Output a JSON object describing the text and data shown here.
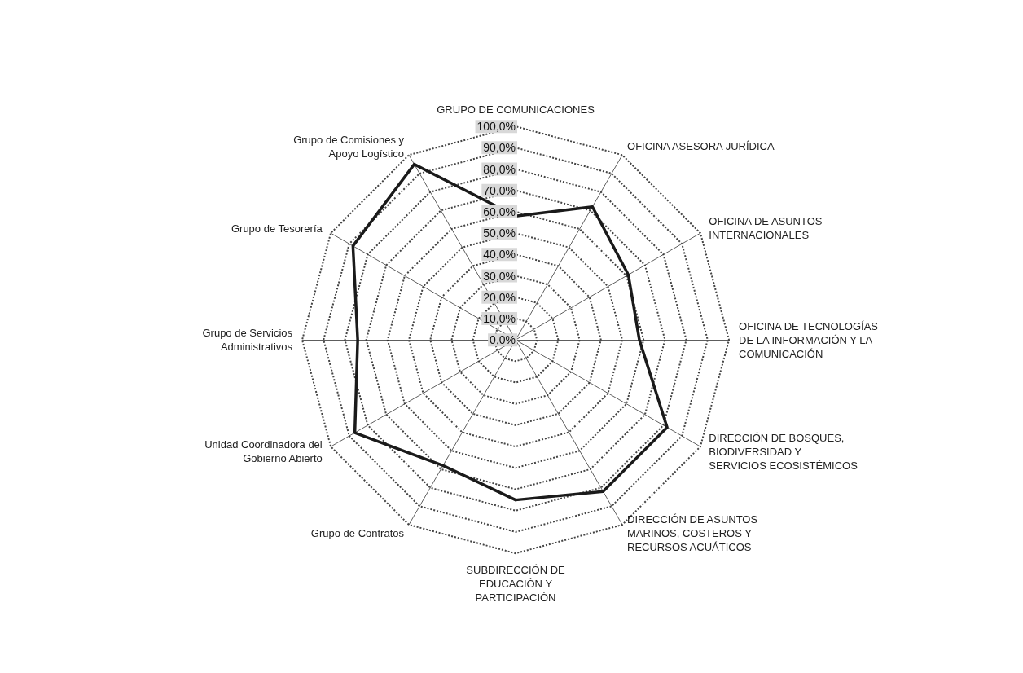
{
  "chart_data": {
    "type": "radar",
    "categories": [
      "GRUPO DE COMUNICACIONES",
      "OFICINA ASESORA JURÍDICA",
      "OFICINA DE ASUNTOS INTERNACIONALES",
      "OFICINA DE TECNOLOGÍAS DE LA INFORMACIÓN Y LA COMUNICACIÓN",
      "DIRECCIÓN DE BOSQUES, BIODIVERSIDAD Y SERVICIOS ECOSISTÉMICOS",
      "DIRECCIÓN DE ASUNTOS MARINOS, COSTEROS Y RECURSOS ACUÁTICOS",
      "SUBDIRECCIÓN DE EDUCACIÓN Y PARTICIPACIÓN",
      "Grupo de Contratos",
      "Unidad Coordinadora del Gobierno Abierto",
      "Grupo de Servicios Administrativos",
      "Grupo de Tesorería",
      "Grupo de Comisiones y Apoyo Logístico"
    ],
    "series": [
      {
        "color": "#1a1a1a",
        "values": [
          58,
          72,
          61,
          58,
          82,
          82,
          75,
          68,
          87,
          74,
          88,
          95
        ]
      }
    ],
    "ylim": [
      0,
      100
    ],
    "yticks": [
      {
        "value": 0,
        "label": "0,0%"
      },
      {
        "value": 10,
        "label": "10,0%"
      },
      {
        "value": 20,
        "label": "20,0%"
      },
      {
        "value": 30,
        "label": "30,0%"
      },
      {
        "value": 40,
        "label": "40,0%"
      },
      {
        "value": 50,
        "label": "50,0%"
      },
      {
        "value": 60,
        "label": "60,0%"
      },
      {
        "value": 70,
        "label": "70,0%"
      },
      {
        "value": 80,
        "label": "80,0%"
      },
      {
        "value": 90,
        "label": "90,0%"
      },
      {
        "value": 100,
        "label": "100,0%"
      }
    ],
    "grid": true,
    "marker": "none",
    "line_style": "solid"
  }
}
